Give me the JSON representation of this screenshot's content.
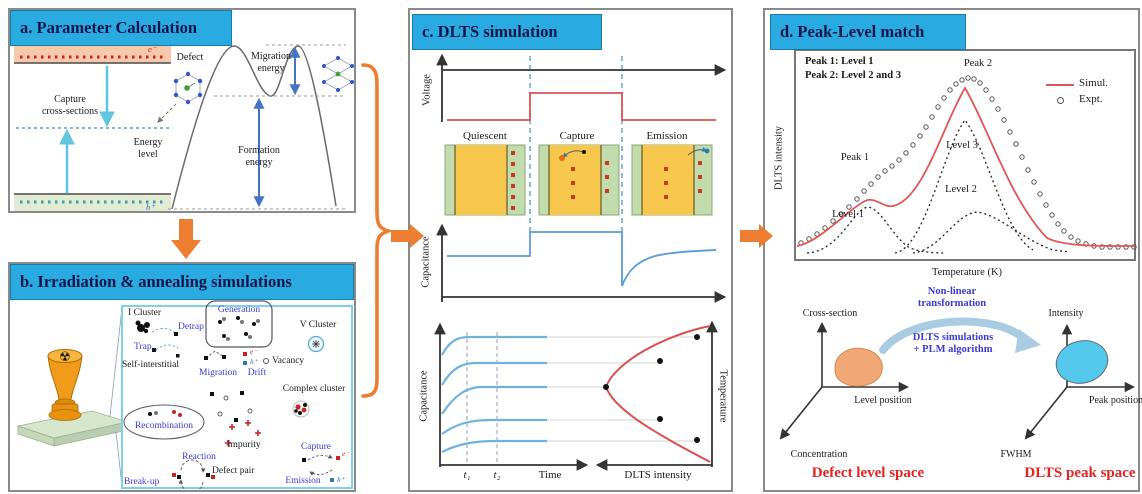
{
  "colors": {
    "header_bg": "#29abe2",
    "header_text": "#14144a",
    "flow_orange": "#ed7d31",
    "sim_red": "#e05555",
    "trace_blue": "#5b9bd5",
    "label_blue": "#3a3ad4",
    "caption_red": "#e32222"
  },
  "panel_a": {
    "title": "a. Parameter Calculation",
    "electron": "e⁻",
    "hole": "h⁺",
    "capture_label": "Capture\ncross-sections",
    "defect_label": "Defect",
    "energy_level_label": "Energy\nlevel",
    "migration_label": "Migration\nenergy",
    "formation_label": "Formation\nenergy"
  },
  "panel_b": {
    "title": "b. Irradiation & annealing simulations",
    "radiation_icon": "☢",
    "i_cluster": "I Cluster",
    "detrap": "Detrap",
    "trap": "Trap",
    "generation": "Generation",
    "v_cluster": "V Cluster",
    "self_interstitial": "Self-interstitial",
    "migration": "Migration",
    "drift": "Drift",
    "vacancy": "Vacancy",
    "complex_cluster": "Complex cluster",
    "recombination": "Recombination",
    "impurity": "Impurity",
    "reaction": "Reaction",
    "defect_pair": "Defect pair",
    "break_up": "Break-up",
    "capture": "Capture",
    "emission": "Emission",
    "electron": "e⁻",
    "hole": "h⁺"
  },
  "panel_c": {
    "title": "c. DLTS simulation",
    "voltage_axis": "Voltage",
    "phase_quiescent": "Quiescent",
    "phase_capture": "Capture",
    "phase_emission": "Emission",
    "capacitance_axis": "Capacitance",
    "time_axis": "Time",
    "t1": "t₁",
    "t2": "t₂",
    "dlts_axis": "DLTS intensity",
    "temperature_axis": "Temperature"
  },
  "panel_d": {
    "title": "d. Peak-Level match",
    "note_line1": "Peak 1: Level 1",
    "note_line2": "Peak 2: Level 2 and 3",
    "peak1": "Peak 1",
    "peak2": "Peak 2",
    "level1": "Level 1",
    "level2": "Level 2",
    "level3": "Level 3",
    "legend_simul": "Simul.",
    "legend_expt": "Expt.",
    "y_axis": "DLTS intensity",
    "x_axis": "Temperature (K)",
    "transform_label": "Non-linear\ntransformation",
    "algorithm_label": "DLTS simulations\n+ PLM algorithm",
    "left_axis_y": "Cross-section",
    "left_axis_x": "Level position",
    "left_axis_z": "Concentration",
    "left_caption": "Defect level space",
    "right_axis_y": "Intensity",
    "right_axis_x": "Peak position",
    "right_axis_z": "FWHM",
    "right_caption": "DLTS peak space",
    "expt_points": [
      [
        36,
        233
      ],
      [
        44,
        229
      ],
      [
        52,
        224
      ],
      [
        60,
        218
      ],
      [
        68,
        211
      ],
      [
        76,
        204
      ],
      [
        84,
        197
      ],
      [
        92,
        189
      ],
      [
        99,
        181
      ],
      [
        106,
        174
      ],
      [
        113,
        167
      ],
      [
        120,
        161
      ],
      [
        127,
        156
      ],
      [
        134,
        150
      ],
      [
        141,
        143
      ],
      [
        148,
        135
      ],
      [
        155,
        126
      ],
      [
        161,
        117
      ],
      [
        167,
        107
      ],
      [
        173,
        97
      ],
      [
        179,
        88
      ],
      [
        185,
        80
      ],
      [
        191,
        74
      ],
      [
        197,
        70
      ],
      [
        203,
        68
      ],
      [
        209,
        69
      ],
      [
        215,
        73
      ],
      [
        221,
        80
      ],
      [
        227,
        89
      ],
      [
        233,
        99
      ],
      [
        239,
        110
      ],
      [
        245,
        122
      ],
      [
        251,
        134
      ],
      [
        257,
        147
      ],
      [
        263,
        160
      ],
      [
        269,
        172
      ],
      [
        275,
        184
      ],
      [
        281,
        195
      ],
      [
        287,
        205
      ],
      [
        293,
        214
      ],
      [
        299,
        221
      ],
      [
        306,
        227
      ],
      [
        313,
        231
      ],
      [
        321,
        234
      ],
      [
        329,
        236
      ],
      [
        337,
        237
      ],
      [
        345,
        237
      ],
      [
        353,
        237
      ],
      [
        361,
        237
      ],
      [
        369,
        237
      ]
    ]
  }
}
